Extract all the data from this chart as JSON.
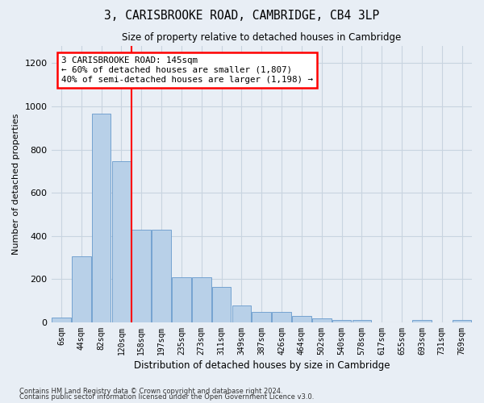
{
  "title": "3, CARISBROOKE ROAD, CAMBRIDGE, CB4 3LP",
  "subtitle": "Size of property relative to detached houses in Cambridge",
  "xlabel": "Distribution of detached houses by size in Cambridge",
  "ylabel": "Number of detached properties",
  "bar_color": "#b8d0e8",
  "bar_edge_color": "#6699cc",
  "categories": [
    "6sqm",
    "44sqm",
    "82sqm",
    "120sqm",
    "158sqm",
    "197sqm",
    "235sqm",
    "273sqm",
    "311sqm",
    "349sqm",
    "387sqm",
    "426sqm",
    "464sqm",
    "502sqm",
    "540sqm",
    "578sqm",
    "617sqm",
    "655sqm",
    "693sqm",
    "731sqm",
    "769sqm"
  ],
  "bar_heights": [
    22,
    305,
    965,
    745,
    430,
    430,
    210,
    210,
    165,
    80,
    48,
    48,
    28,
    18,
    12,
    10,
    0,
    0,
    12,
    0,
    12
  ],
  "ylim": [
    0,
    1280
  ],
  "yticks": [
    0,
    200,
    400,
    600,
    800,
    1000,
    1200
  ],
  "red_line_x": 3.5,
  "annotation_text": "3 CARISBROOKE ROAD: 145sqm\n← 60% of detached houses are smaller (1,807)\n40% of semi-detached houses are larger (1,198) →",
  "footer1": "Contains HM Land Registry data © Crown copyright and database right 2024.",
  "footer2": "Contains public sector information licensed under the Open Government Licence v3.0.",
  "bg_color": "#e8eef5",
  "grid_color": "#c8d4e0"
}
